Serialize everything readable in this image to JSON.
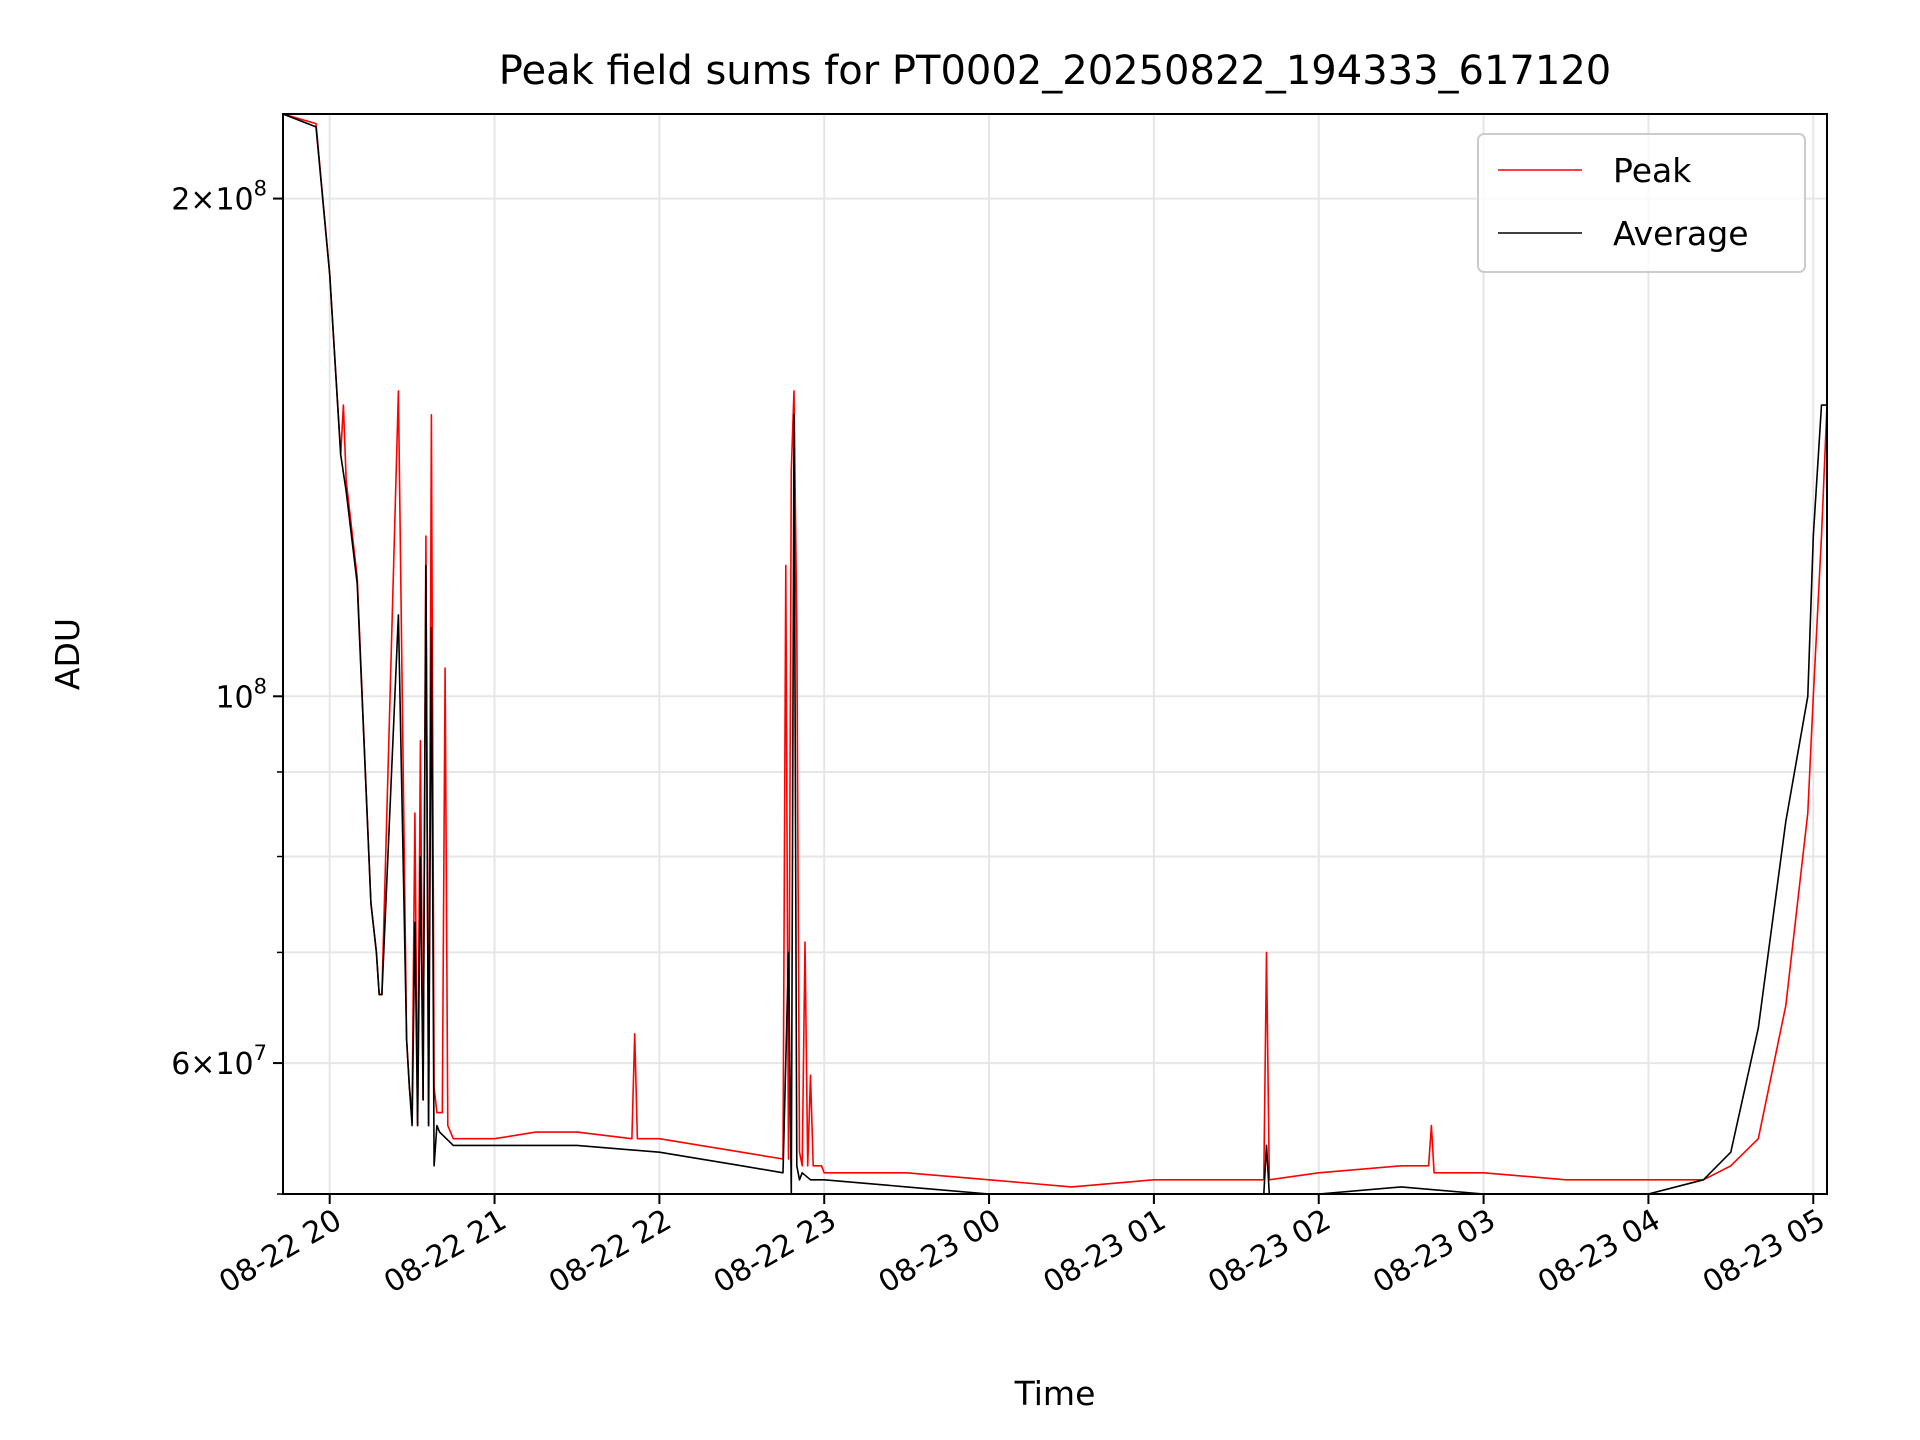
{
  "chart_data": {
    "type": "line",
    "title": "Peak field sums for PT0002_20250822_194333_617120",
    "xlabel": "Time",
    "ylabel": "ADU",
    "yscale": "log",
    "grid": true,
    "legend_position": "top-right",
    "xlim": [
      "08-22 19:43",
      "08-23 05:05"
    ],
    "ylim": [
      50000000,
      225000000
    ],
    "x_ticks": [
      "08-22 20",
      "08-22 21",
      "08-22 22",
      "08-22 23",
      "08-23 00",
      "08-23 01",
      "08-23 02",
      "08-23 03",
      "08-23 04",
      "08-23 05"
    ],
    "y_tick_labels": [
      {
        "value": 200000000,
        "mantissa": "2",
        "base": "10",
        "exp": "8"
      },
      {
        "value": 100000000,
        "mantissa": "",
        "base": "10",
        "exp": "8"
      },
      {
        "value": 60000000,
        "mantissa": "6",
        "base": "10",
        "exp": "7"
      }
    ],
    "y_minor_ticks": [
      50000000,
      70000000,
      80000000,
      90000000
    ],
    "series": [
      {
        "name": "Peak",
        "color": "#ff0000",
        "x": [
          "08-22 19:43",
          "08-22 19:55",
          "08-22 20:00",
          "08-22 20:04",
          "08-22 20:05",
          "08-22 20:06",
          "08-22 20:10",
          "08-22 20:15",
          "08-22 20:17",
          "08-22 20:18",
          "08-22 20:19",
          "08-22 20:25",
          "08-22 20:28",
          "08-22 20:29",
          "08-22 20:30",
          "08-22 20:31",
          "08-22 20:32",
          "08-22 20:33",
          "08-22 20:34",
          "08-22 20:35",
          "08-22 20:36",
          "08-22 20:37",
          "08-22 20:38",
          "08-22 20:39",
          "08-22 20:40",
          "08-22 20:41",
          "08-22 20:42",
          "08-22 20:43",
          "08-22 20:45",
          "08-22 21:00",
          "08-22 21:15",
          "08-22 21:30",
          "08-22 21:50",
          "08-22 21:51",
          "08-22 21:52",
          "08-22 22:00",
          "08-22 22:30",
          "08-22 22:45",
          "08-22 22:46",
          "08-22 22:47",
          "08-22 22:48",
          "08-22 22:49",
          "08-22 22:50",
          "08-22 22:51",
          "08-22 22:52",
          "08-22 22:53",
          "08-22 22:54",
          "08-22 22:55",
          "08-22 22:56",
          "08-22 22:58",
          "08-22 22:59",
          "08-22 23:00",
          "08-22 23:30",
          "08-23 00:00",
          "08-23 00:30",
          "08-23 01:00",
          "08-23 01:30",
          "08-23 01:40",
          "08-23 01:41",
          "08-23 01:42",
          "08-23 02:00",
          "08-23 02:30",
          "08-23 02:40",
          "08-23 02:41",
          "08-23 02:42",
          "08-23 03:00",
          "08-23 03:30",
          "08-23 04:00",
          "08-23 04:20",
          "08-23 04:30",
          "08-23 04:40",
          "08-23 04:50",
          "08-23 04:58",
          "08-23 05:00",
          "08-23 05:03",
          "08-23 05:05"
        ],
        "values": [
          225000000,
          222000000,
          180000000,
          140000000,
          150000000,
          135000000,
          118000000,
          75000000,
          70000000,
          66000000,
          66000000,
          153000000,
          62000000,
          58000000,
          56000000,
          85000000,
          55000000,
          94000000,
          57000000,
          125000000,
          55000000,
          148000000,
          58000000,
          56000000,
          56000000,
          56000000,
          104000000,
          55000000,
          54000000,
          54000000,
          54500000,
          54500000,
          54000000,
          62500000,
          54000000,
          54000000,
          53000000,
          52500000,
          120000000,
          52500000,
          137000000,
          153000000,
          110000000,
          53000000,
          52000000,
          71000000,
          52000000,
          59000000,
          52000000,
          52000000,
          52000000,
          51500000,
          51500000,
          51000000,
          50500000,
          51000000,
          51000000,
          51000000,
          70000000,
          51000000,
          51500000,
          52000000,
          52000000,
          55000000,
          51500000,
          51500000,
          51000000,
          51000000,
          51000000,
          52000000,
          54000000,
          65000000,
          85000000,
          100000000,
          125000000,
          150000000
        ]
      },
      {
        "name": "Average",
        "color": "#000000",
        "x": [
          "08-22 19:43",
          "08-22 19:55",
          "08-22 20:00",
          "08-22 20:04",
          "08-22 20:06",
          "08-22 20:10",
          "08-22 20:15",
          "08-22 20:17",
          "08-22 20:18",
          "08-22 20:19",
          "08-22 20:25",
          "08-22 20:28",
          "08-22 20:29",
          "08-22 20:30",
          "08-22 20:31",
          "08-22 20:32",
          "08-22 20:33",
          "08-22 20:34",
          "08-22 20:35",
          "08-22 20:36",
          "08-22 20:37",
          "08-22 20:38",
          "08-22 20:39",
          "08-22 20:40",
          "08-22 20:45",
          "08-22 21:00",
          "08-22 21:30",
          "08-22 22:00",
          "08-22 22:30",
          "08-22 22:45",
          "08-22 22:47",
          "08-22 22:48",
          "08-22 22:49",
          "08-22 22:50",
          "08-22 22:51",
          "08-22 22:52",
          "08-22 22:55",
          "08-22 23:00",
          "08-22 23:30",
          "08-23 00:00",
          "08-23 00:30",
          "08-23 01:00",
          "08-23 01:30",
          "08-23 01:40",
          "08-23 01:41",
          "08-23 01:42",
          "08-23 02:00",
          "08-23 02:30",
          "08-23 03:00",
          "08-23 03:30",
          "08-23 04:00",
          "08-23 04:20",
          "08-23 04:30",
          "08-23 04:40",
          "08-23 04:50",
          "08-23 04:58",
          "08-23 05:00",
          "08-23 05:03",
          "08-23 05:05"
        ],
        "values": [
          225000000,
          221000000,
          180000000,
          140000000,
          133000000,
          117000000,
          75000000,
          70000000,
          66000000,
          66000000,
          112000000,
          62000000,
          58000000,
          55000000,
          73000000,
          55000000,
          80000000,
          57000000,
          120000000,
          55000000,
          110000000,
          52000000,
          55000000,
          54500000,
          53500000,
          53500000,
          53500000,
          53000000,
          52000000,
          51500000,
          70000000,
          50000000,
          148000000,
          52000000,
          51000000,
          51500000,
          51000000,
          51000000,
          50500000,
          50000000,
          50000000,
          50000000,
          50000000,
          50000000,
          53500000,
          50000000,
          50000000,
          50500000,
          50000000,
          50000000,
          50000000,
          51000000,
          53000000,
          63000000,
          84000000,
          100000000,
          125000000,
          150000000,
          150000000
        ]
      }
    ]
  }
}
